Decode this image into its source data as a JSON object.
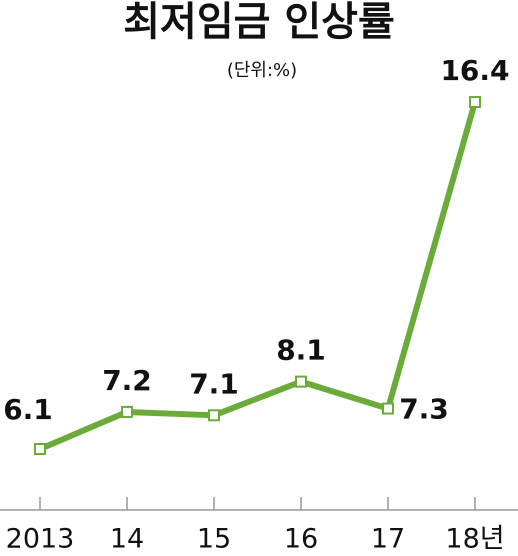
{
  "chart_data": {
    "type": "line",
    "title": "최저임금 인상률",
    "subtitle": "(단위:%)",
    "categories": [
      "2013",
      "14",
      "15",
      "16",
      "17",
      "18년"
    ],
    "values": [
      6.1,
      7.2,
      7.1,
      8.1,
      7.3,
      16.4
    ],
    "color": "#6aab3a"
  }
}
